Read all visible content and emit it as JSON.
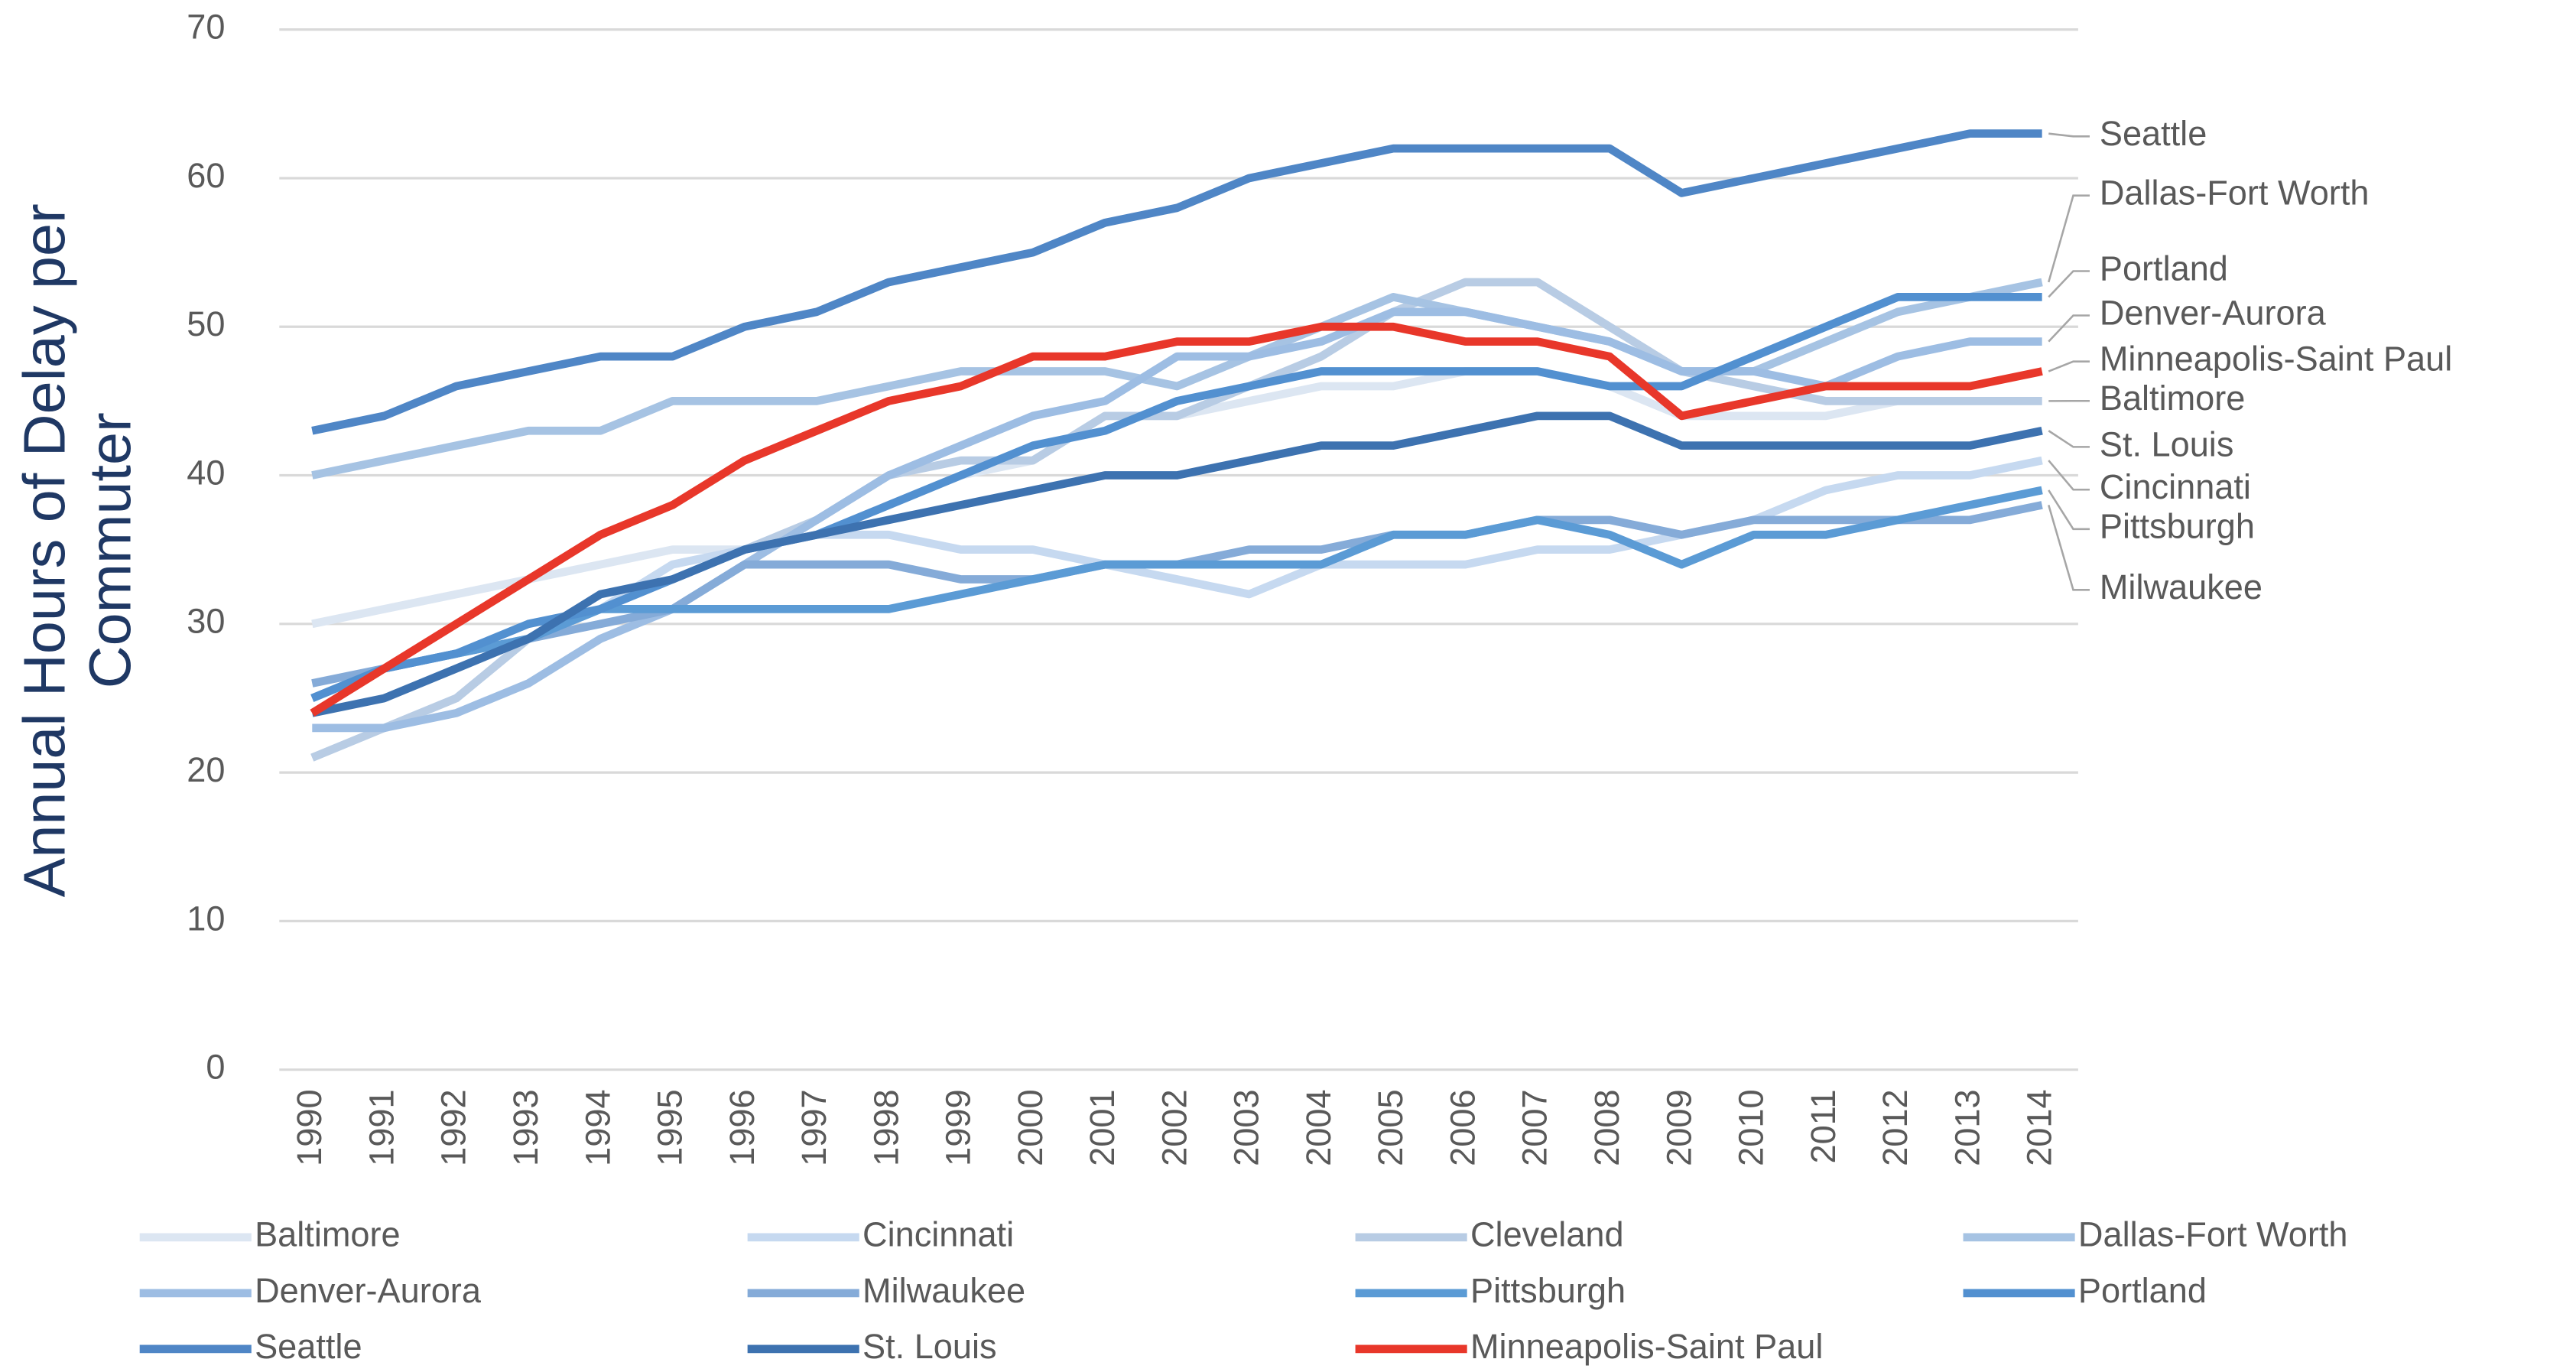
{
  "chart_data": {
    "type": "line",
    "y_label": "Annual Hours of Delay per Commuter",
    "categories": [
      "1990",
      "1991",
      "1992",
      "1993",
      "1994",
      "1995",
      "1996",
      "1997",
      "1998",
      "1999",
      "2000",
      "2001",
      "2002",
      "2003",
      "2004",
      "2005",
      "2006",
      "2007",
      "2008",
      "2009",
      "2010",
      "2011",
      "2012",
      "2013",
      "2014"
    ],
    "ylim": [
      0,
      70
    ],
    "yticks": [
      0,
      10,
      20,
      30,
      40,
      50,
      60,
      70
    ],
    "grid": true,
    "series": [
      {
        "name": "Baltimore",
        "color": "#dce6f2",
        "values": [
          30,
          31,
          32,
          33,
          34,
          35,
          35,
          36,
          38,
          40,
          41,
          44,
          44,
          45,
          46,
          46,
          47,
          47,
          46,
          44,
          44,
          44,
          45,
          45,
          45
        ]
      },
      {
        "name": "Cincinnati",
        "color": "#c6d9f0",
        "values": [
          21,
          23,
          25,
          29,
          31,
          34,
          35,
          36,
          36,
          35,
          35,
          34,
          33,
          32,
          34,
          34,
          34,
          35,
          35,
          36,
          37,
          39,
          40,
          40,
          41
        ]
      },
      {
        "name": "Cleveland",
        "color": "#b8cce4",
        "values": [
          21,
          23,
          25,
          29,
          31,
          33,
          35,
          37,
          40,
          41,
          41,
          44,
          44,
          46,
          48,
          51,
          53,
          53,
          50,
          47,
          46,
          45,
          45,
          45,
          45
        ]
      },
      {
        "name": "Dallas-Fort Worth",
        "color": "#a6c3e3",
        "values": [
          40,
          41,
          42,
          43,
          43,
          45,
          45,
          45,
          46,
          47,
          47,
          47,
          46,
          48,
          50,
          52,
          51,
          50,
          49,
          47,
          47,
          49,
          51,
          52,
          53
        ]
      },
      {
        "name": "Denver-Aurora",
        "color": "#9dbde3",
        "values": [
          23,
          23,
          24,
          26,
          29,
          31,
          34,
          37,
          40,
          42,
          44,
          45,
          48,
          48,
          49,
          51,
          51,
          50,
          49,
          47,
          47,
          46,
          48,
          49,
          49
        ]
      },
      {
        "name": "Milwaukee",
        "color": "#85abd8",
        "values": [
          26,
          27,
          28,
          29,
          30,
          31,
          34,
          34,
          34,
          33,
          33,
          34,
          34,
          35,
          35,
          36,
          36,
          37,
          37,
          36,
          37,
          37,
          37,
          37,
          38
        ]
      },
      {
        "name": "Pittsburgh",
        "color": "#5b9bd5",
        "values": [
          25,
          27,
          28,
          29,
          31,
          31,
          31,
          31,
          31,
          32,
          33,
          34,
          34,
          34,
          34,
          36,
          36,
          37,
          36,
          34,
          36,
          36,
          37,
          38,
          39
        ]
      },
      {
        "name": "Portland",
        "color": "#5290d0",
        "values": [
          25,
          27,
          28,
          30,
          31,
          33,
          35,
          36,
          38,
          40,
          42,
          43,
          45,
          46,
          47,
          47,
          47,
          47,
          46,
          46,
          48,
          50,
          52,
          52,
          52
        ]
      },
      {
        "name": "Seattle",
        "color": "#4f86c6",
        "values": [
          43,
          44,
          46,
          47,
          48,
          48,
          50,
          51,
          53,
          54,
          55,
          57,
          58,
          60,
          61,
          62,
          62,
          62,
          62,
          59,
          60,
          61,
          62,
          63,
          63
        ]
      },
      {
        "name": "St. Louis",
        "color": "#3d72b0",
        "values": [
          24,
          25,
          27,
          29,
          32,
          33,
          35,
          36,
          37,
          38,
          39,
          40,
          40,
          41,
          42,
          42,
          43,
          44,
          44,
          42,
          42,
          42,
          42,
          42,
          43
        ]
      },
      {
        "name": "Minneapolis-Saint Paul",
        "color": "#e8372a",
        "values": [
          24,
          27,
          30,
          33,
          36,
          38,
          41,
          43,
          45,
          46,
          48,
          48,
          49,
          49,
          50,
          50,
          49,
          49,
          48,
          44,
          45,
          46,
          46,
          46,
          47
        ]
      }
    ]
  }
}
